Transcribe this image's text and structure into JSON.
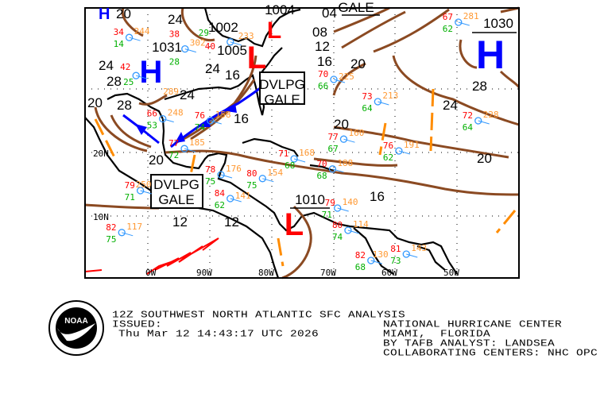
{
  "map": {
    "colors": {
      "isobar": "#8b4a22",
      "trough": "#ff8c00",
      "cold_front": "#0000ff",
      "high_low": "#ff0000",
      "high": "#0000ff",
      "temp": "#ff0000",
      "dewpoint": "#00b000",
      "pressure": "#ff9933",
      "station": "#3399ff",
      "coast": "#000000"
    },
    "lat_labels": [
      "20N",
      "10N"
    ],
    "lon_labels": [
      "0W",
      "90W",
      "80W",
      "70W",
      "60W",
      "50W"
    ],
    "high_centers": [
      {
        "pressure": "1030",
        "symbol": "H"
      },
      {
        "pressure": "1031",
        "symbol": "H"
      }
    ],
    "low_centers": [
      {
        "pressure": "1010",
        "symbol": "L"
      },
      {
        "pressure": "1005",
        "symbol": "L"
      },
      {
        "pressure": "1004",
        "symbol": "L"
      }
    ],
    "warnings": [
      {
        "line1": "DVLPG",
        "line2": "GALE"
      },
      {
        "line1": "DVLPG",
        "line2": "GALE"
      },
      {
        "line1": "GALE"
      }
    ],
    "isobar_labels": [
      "20",
      "24",
      "04",
      "08",
      "12",
      "16",
      "20",
      "28",
      "24",
      "28",
      "20",
      "28",
      "24",
      "16",
      "24",
      "16",
      "20",
      "24",
      "20",
      "20",
      "12",
      "16",
      "12",
      "1002"
    ],
    "stations": [
      {
        "lat": 38.1,
        "lon": -103.0,
        "t": "34",
        "td": "14",
        "p": "244"
      },
      {
        "lat": 36.3,
        "lon": -94.0,
        "t": "38",
        "td": "28",
        "p": "302"
      },
      {
        "lat": 32.1,
        "lon": -101.9,
        "t": "42",
        "td": "25",
        "p": "289"
      },
      {
        "lat": 37.4,
        "lon": -86.7,
        "t": "40",
        "td": "29",
        "p": "233"
      },
      {
        "lat": 25.3,
        "lon": -97.6,
        "t": "66",
        "td": "53",
        "p": "248"
      },
      {
        "lat": 25.0,
        "lon": -89.9,
        "t": "76",
        "td": "74",
        "p": "158"
      },
      {
        "lat": 20.6,
        "lon": -94.1,
        "t": "77",
        "td": "72",
        "p": "185"
      },
      {
        "lat": 14.0,
        "lon": -101.2,
        "t": "79",
        "td": "71",
        "p": "250"
      },
      {
        "lat": 7.4,
        "lon": -104.2,
        "t": "82",
        "td": "75",
        "p": "117"
      },
      {
        "lat": 16.5,
        "lon": -88.2,
        "t": "78",
        "td": "75",
        "p": "176"
      },
      {
        "lat": 15.9,
        "lon": -81.5,
        "t": "80",
        "td": "75",
        "p": "154"
      },
      {
        "lat": 12.75,
        "lon": -86.7,
        "t": "84",
        "td": "62",
        "p": "141"
      },
      {
        "lat": 22.1,
        "lon": -68.4,
        "t": "77",
        "td": "67",
        "p": "160"
      },
      {
        "lat": 20.25,
        "lon": -59.5,
        "t": "76",
        "td": "62",
        "p": "191"
      },
      {
        "lat": 28.0,
        "lon": -62.9,
        "t": "73",
        "td": "64",
        "p": "213"
      },
      {
        "lat": 25.0,
        "lon": -46.7,
        "t": "72",
        "td": "64",
        "p": "228"
      },
      {
        "lat": 40.5,
        "lon": -49.9,
        "t": "67",
        "td": "62",
        "p": "281"
      },
      {
        "lat": 7.75,
        "lon": -67.7,
        "t": "80",
        "td": "74",
        "p": "114"
      },
      {
        "lat": 19.0,
        "lon": -76.4,
        "t": "71",
        "td": "68",
        "p": "168"
      },
      {
        "lat": 11.25,
        "lon": -69.4,
        "t": "79",
        "td": "71",
        "p": "140"
      },
      {
        "lat": 4.0,
        "lon": -58.3,
        "t": "81",
        "td": "73",
        "p": "143"
      },
      {
        "lat": 17.4,
        "lon": -70.2,
        "t": "70",
        "td": "68",
        "p": "188"
      },
      {
        "lat": 31.5,
        "lon": -70.0,
        "t": "70",
        "td": "66",
        "p": "225"
      },
      {
        "lat": 3.0,
        "lon": -64.0,
        "t": "82",
        "td": "68",
        "p": "130"
      }
    ]
  },
  "footer": {
    "title": "12Z SOUTHWEST NORTH ATLANTIC SFC ANALYSIS",
    "issued_label": "ISSUED:",
    "issued_time": "Thu Mar 12 14:43:17 UTC 2026",
    "center": "NATIONAL HURRICANE CENTER",
    "location": "MIAMI,  FLORIDA",
    "analyst": "BY TAFB ANALYST: LANDSEA",
    "collaborating": "COLLABORATING CENTERS: NHC OPC"
  },
  "logo": {
    "text": "NOAA",
    "ring_text": "NATIONAL OCEANIC AND ATMOSPHERIC ADMINISTRATION U.S. DEPARTMENT OF COMMERCE"
  }
}
